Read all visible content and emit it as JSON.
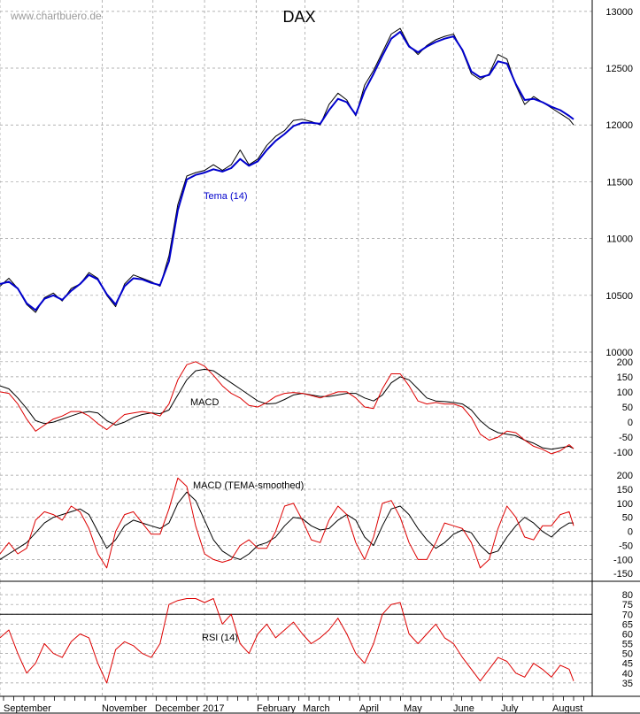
{
  "watermark": "www.chartbuero.de",
  "colors": {
    "price": "#000000",
    "tema": "#0000cc",
    "macd": "#000000",
    "signal": "#dd0000",
    "rsi": "#dd0000",
    "grid": "#9a9a9a"
  },
  "months": [
    "September",
    "November",
    "December",
    "2017",
    "February",
    "March",
    "April",
    "May",
    "June",
    "July",
    "August"
  ],
  "chart_data": [
    {
      "type": "line",
      "title": "DAX",
      "annotation": "Tema (14)",
      "ylim": [
        10000,
        13100
      ],
      "yticks": [
        10000,
        10500,
        11000,
        11500,
        12000,
        12500,
        13000
      ],
      "x": [
        0,
        10,
        20,
        30,
        40,
        50,
        60,
        70,
        80,
        90,
        100,
        110,
        120,
        130,
        140,
        150,
        160,
        170,
        180,
        190,
        200,
        210,
        220,
        230,
        240,
        250,
        260,
        270,
        280,
        290,
        300,
        310,
        320,
        330,
        340,
        350,
        360,
        370,
        380,
        390,
        400,
        410,
        420,
        430,
        440,
        450,
        460,
        470,
        480,
        490,
        500,
        510,
        520,
        530,
        540,
        550,
        560,
        570,
        580,
        590,
        600,
        610,
        620,
        630,
        640,
        645
      ],
      "series": [
        {
          "name": "",
          "values": [
            10580,
            10650,
            10560,
            10420,
            10350,
            10480,
            10520,
            10450,
            10560,
            10600,
            10700,
            10650,
            10500,
            10400,
            10600,
            10680,
            10650,
            10620,
            10580,
            10850,
            11300,
            11550,
            11580,
            11600,
            11650,
            11600,
            11650,
            11780,
            11650,
            11700,
            11820,
            11900,
            11950,
            12040,
            12050,
            12030,
            12000,
            12180,
            12280,
            12220,
            12080,
            12350,
            12480,
            12640,
            12800,
            12850,
            12700,
            12620,
            12700,
            12750,
            12780,
            12800,
            12650,
            12450,
            12400,
            12450,
            12620,
            12580,
            12350,
            12180,
            12250,
            12200,
            12150,
            12100,
            12050,
            12000
          ]
        },
        {
          "name": "Tema (14)",
          "values": [
            10600,
            10620,
            10560,
            10430,
            10370,
            10470,
            10500,
            10460,
            10540,
            10600,
            10680,
            10640,
            10510,
            10420,
            10580,
            10650,
            10640,
            10610,
            10590,
            10800,
            11250,
            11520,
            11560,
            11580,
            11610,
            11590,
            11620,
            11700,
            11640,
            11680,
            11780,
            11860,
            11920,
            11990,
            12020,
            12020,
            12010,
            12130,
            12230,
            12200,
            12090,
            12300,
            12450,
            12610,
            12760,
            12820,
            12690,
            12640,
            12690,
            12730,
            12760,
            12780,
            12660,
            12470,
            12420,
            12440,
            12560,
            12540,
            12360,
            12220,
            12230,
            12200,
            12160,
            12130,
            12080,
            12050
          ]
        }
      ]
    },
    {
      "type": "line",
      "annotation": "MACD",
      "ylim": [
        -120,
        220
      ],
      "yticks": [
        -100,
        -50,
        0,
        50,
        100,
        150,
        200
      ],
      "x": [
        0,
        10,
        20,
        30,
        40,
        50,
        60,
        70,
        80,
        90,
        100,
        110,
        120,
        130,
        140,
        150,
        160,
        170,
        180,
        190,
        200,
        210,
        220,
        230,
        240,
        250,
        260,
        270,
        280,
        290,
        300,
        310,
        320,
        330,
        340,
        350,
        360,
        370,
        380,
        390,
        400,
        410,
        420,
        430,
        440,
        450,
        460,
        470,
        480,
        490,
        500,
        510,
        520,
        530,
        540,
        550,
        560,
        570,
        580,
        590,
        600,
        610,
        620,
        630,
        640,
        645
      ],
      "series": [
        {
          "name": "",
          "values": [
            120,
            110,
            80,
            45,
            5,
            -5,
            0,
            10,
            20,
            30,
            35,
            30,
            5,
            -10,
            0,
            15,
            25,
            30,
            28,
            40,
            90,
            140,
            170,
            175,
            170,
            150,
            130,
            110,
            90,
            70,
            60,
            62,
            75,
            90,
            95,
            90,
            85,
            85,
            90,
            95,
            95,
            80,
            70,
            90,
            130,
            150,
            140,
            110,
            80,
            70,
            68,
            65,
            60,
            40,
            5,
            -20,
            -35,
            -40,
            -45,
            -60,
            -70,
            -85,
            -90,
            -85,
            -80,
            -88
          ]
        },
        {
          "name": "",
          "values": [
            100,
            95,
            60,
            10,
            -30,
            -10,
            10,
            20,
            35,
            35,
            20,
            -5,
            -25,
            0,
            25,
            30,
            35,
            30,
            20,
            60,
            140,
            190,
            200,
            185,
            155,
            120,
            95,
            80,
            55,
            50,
            65,
            85,
            95,
            98,
            95,
            88,
            80,
            90,
            100,
            100,
            80,
            50,
            45,
            110,
            160,
            160,
            120,
            70,
            60,
            65,
            60,
            60,
            50,
            15,
            -40,
            -60,
            -50,
            -30,
            -35,
            -60,
            -80,
            -90,
            -105,
            -95,
            -75,
            -88
          ]
        }
      ]
    },
    {
      "type": "line",
      "annotation": "MACD (TEMA-smoothed)",
      "ylim": [
        -165,
        235
      ],
      "yticks": [
        -150,
        -100,
        -50,
        0,
        50,
        100,
        150,
        200
      ],
      "x": [
        0,
        10,
        20,
        30,
        40,
        50,
        60,
        70,
        80,
        90,
        100,
        110,
        120,
        130,
        140,
        150,
        160,
        170,
        180,
        190,
        200,
        210,
        220,
        230,
        240,
        250,
        260,
        270,
        280,
        290,
        300,
        310,
        320,
        330,
        340,
        350,
        360,
        370,
        380,
        390,
        400,
        410,
        420,
        430,
        440,
        450,
        460,
        470,
        480,
        490,
        500,
        510,
        520,
        530,
        540,
        550,
        560,
        570,
        580,
        590,
        600,
        610,
        620,
        630,
        640,
        645
      ],
      "series": [
        {
          "name": "",
          "values": [
            -100,
            -80,
            -60,
            -40,
            -5,
            30,
            50,
            60,
            70,
            80,
            60,
            0,
            -60,
            -30,
            20,
            40,
            30,
            20,
            10,
            30,
            100,
            140,
            110,
            40,
            -30,
            -70,
            -90,
            -100,
            -80,
            -50,
            -40,
            -20,
            20,
            50,
            45,
            20,
            5,
            10,
            40,
            60,
            40,
            -20,
            -50,
            20,
            80,
            90,
            60,
            10,
            -30,
            -60,
            -40,
            -10,
            5,
            -5,
            -50,
            -80,
            -70,
            -20,
            20,
            50,
            30,
            0,
            -20,
            10,
            30,
            30
          ]
        },
        {
          "name": "",
          "values": [
            -80,
            -40,
            -80,
            -60,
            40,
            70,
            60,
            40,
            90,
            70,
            10,
            -80,
            -130,
            0,
            60,
            70,
            30,
            -10,
            -10,
            80,
            190,
            160,
            20,
            -80,
            -100,
            -110,
            -100,
            -50,
            -30,
            -60,
            -60,
            0,
            90,
            100,
            40,
            -30,
            -40,
            40,
            90,
            60,
            -40,
            -100,
            -20,
            100,
            110,
            50,
            -40,
            -100,
            -100,
            -40,
            30,
            20,
            10,
            -40,
            -130,
            -100,
            10,
            90,
            50,
            -20,
            -30,
            20,
            20,
            60,
            70,
            20
          ]
        }
      ]
    },
    {
      "type": "line",
      "annotation": "RSI (14)",
      "ylim": [
        30,
        85
      ],
      "yticks": [
        35,
        40,
        45,
        50,
        55,
        60,
        65,
        70,
        75,
        80
      ],
      "x": [
        0,
        10,
        20,
        30,
        40,
        50,
        60,
        70,
        80,
        90,
        100,
        110,
        120,
        130,
        140,
        150,
        160,
        170,
        180,
        190,
        200,
        210,
        220,
        230,
        240,
        250,
        260,
        270,
        280,
        290,
        300,
        310,
        320,
        330,
        340,
        350,
        360,
        370,
        380,
        390,
        400,
        410,
        420,
        430,
        440,
        450,
        460,
        470,
        480,
        490,
        500,
        510,
        520,
        530,
        540,
        550,
        560,
        570,
        580,
        590,
        600,
        610,
        620,
        630,
        640,
        645
      ],
      "series": [
        {
          "name": "RSI (14)",
          "values": [
            58,
            62,
            50,
            40,
            45,
            55,
            50,
            48,
            56,
            60,
            58,
            45,
            35,
            52,
            56,
            54,
            50,
            48,
            55,
            75,
            77,
            78,
            78,
            76,
            78,
            65,
            70,
            55,
            50,
            60,
            65,
            58,
            62,
            66,
            60,
            55,
            58,
            62,
            68,
            60,
            50,
            45,
            55,
            70,
            75,
            76,
            60,
            55,
            60,
            65,
            58,
            55,
            48,
            42,
            36,
            42,
            48,
            46,
            40,
            38,
            45,
            42,
            38,
            44,
            42,
            36
          ]
        }
      ]
    }
  ]
}
